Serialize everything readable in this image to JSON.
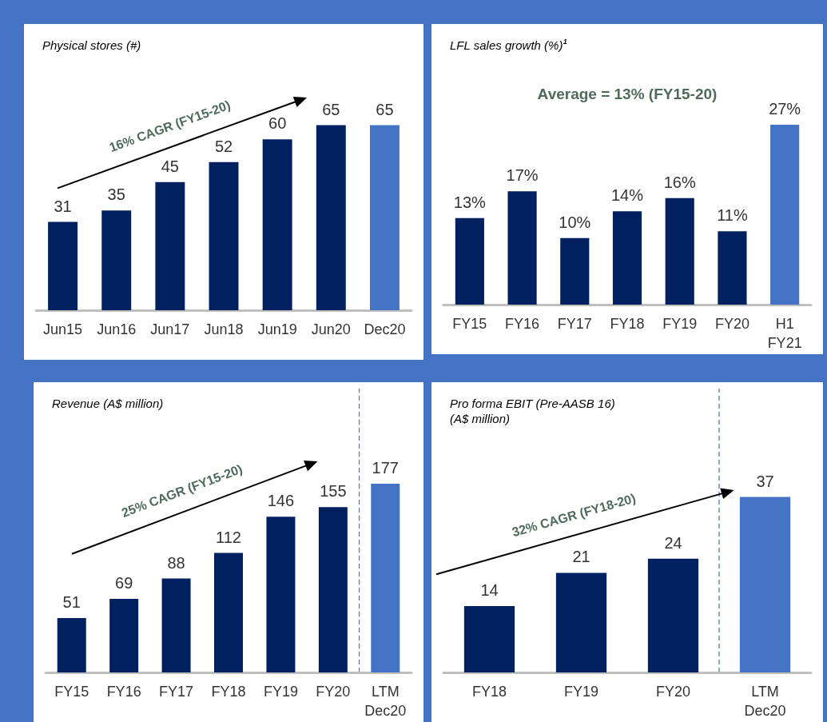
{
  "chart_data": [
    {
      "type": "bar",
      "title": "Physical stores (#)",
      "categories": [
        "Jun15",
        "Jun16",
        "Jun17",
        "Jun18",
        "Jun19",
        "Jun20",
        "Dec20"
      ],
      "values": [
        31,
        35,
        45,
        52,
        60,
        65,
        65
      ],
      "colors": [
        "#002060",
        "#002060",
        "#002060",
        "#002060",
        "#002060",
        "#002060",
        "#4472c4"
      ],
      "data_labels": true,
      "tick_labels": "x",
      "annotations": [
        "16% CAGR (FY15-20)"
      ]
    },
    {
      "type": "bar",
      "title": "LFL sales growth (%)$^{1}$",
      "categories": [
        "FY15",
        "FY16",
        "FY17",
        "FY18",
        "FY19",
        "FY20",
        "H1\nFY21"
      ],
      "values": [
        13,
        17,
        10,
        14,
        16,
        11,
        27
      ],
      "colors": [
        "#002060",
        "#002060",
        "#002060",
        "#002060",
        "#002060",
        "#002060",
        "#4472c4"
      ],
      "value_labels": [
        "13%",
        "17%",
        "10%",
        "14%",
        "16%",
        "11%",
        "27%"
      ],
      "tick_labels": "x",
      "annotations": [
        "Average = 13% (FY15-20)"
      ]
    },
    {
      "type": "bar",
      "title": "Revenue (A$ million)",
      "categories": [
        "FY15",
        "FY16",
        "FY17",
        "FY18",
        "FY19",
        "FY20",
        "LTM\nDec20"
      ],
      "values": [
        51,
        69,
        88,
        112,
        146,
        155,
        177
      ],
      "colors": [
        "#002060",
        "#002060",
        "#002060",
        "#002060",
        "#002060",
        "#002060",
        "#4472c4"
      ],
      "data_labels": true,
      "tick_labels": "x",
      "annotations": [
        "25% CAGR (FY15-20)"
      ],
      "ref_lines": [
        {
          "axis": "x",
          "value": "LTM\nDec20",
          "line_style": "dashed",
          "color": "#4472c4"
        }
      ]
    },
    {
      "type": "bar",
      "title": "Pro forma EBIT (Pre-AASB 16)\n(A$ million)",
      "categories": [
        "FY18",
        "FY19",
        "FY20",
        "LTM\nDec20"
      ],
      "values": [
        14,
        21,
        24,
        37
      ],
      "colors": [
        "#002060",
        "#002060",
        "#002060",
        "#4472c4"
      ],
      "data_labels": true,
      "tick_labels": "x",
      "annotations": [
        "32% CAGR (FY18-20)"
      ],
      "ref_lines": [
        {
          "axis": "x",
          "value": "LTM\nDec20",
          "line_style": "dashed",
          "color": "#4472c4"
        }
      ]
    }
  ]
}
